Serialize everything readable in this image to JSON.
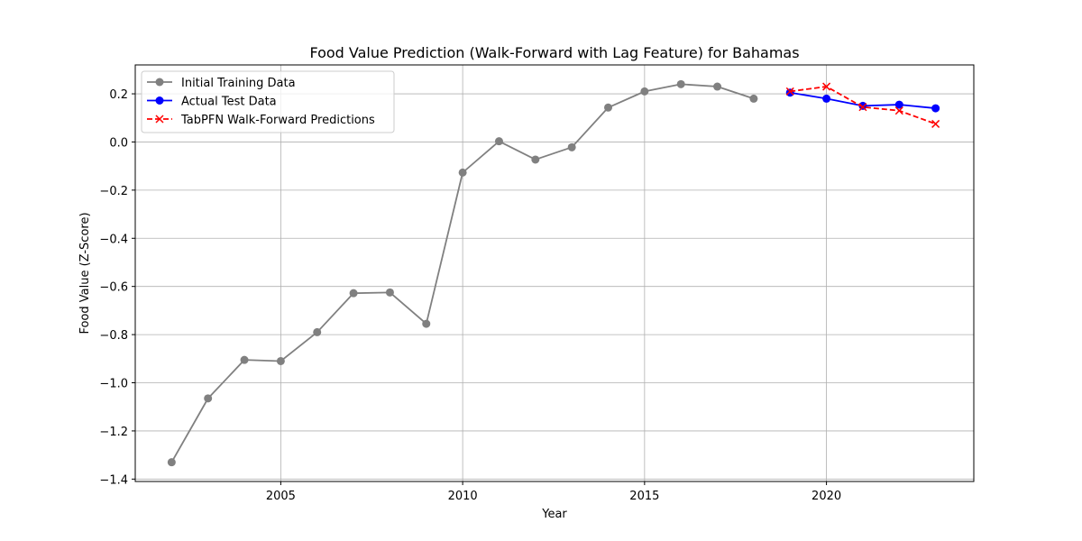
{
  "chart_data": {
    "type": "line",
    "title": "Food Value Prediction (Walk-Forward with Lag Feature) for Bahamas",
    "xlabel": "Year",
    "ylabel": "Food Value (Z-Score)",
    "xlim": [
      2001.0,
      2024.05
    ],
    "ylim": [
      -1.41,
      0.32
    ],
    "xticks": [
      2005,
      2010,
      2015,
      2020
    ],
    "yticks": [
      -1.4,
      -1.2,
      -1.0,
      -0.8,
      -0.6,
      -0.4,
      -0.2,
      0.0,
      0.2
    ],
    "grid": true,
    "legend_position": "top-left",
    "series": [
      {
        "name": "Initial Training Data",
        "color": "#808080",
        "linestyle": "solid",
        "marker": "circle",
        "x": [
          2002,
          2003,
          2004,
          2005,
          2006,
          2007,
          2008,
          2009,
          2010,
          2011,
          2012,
          2013,
          2014,
          2015,
          2016,
          2017,
          2018
        ],
        "y": [
          -1.33,
          -1.065,
          -0.905,
          -0.91,
          -0.79,
          -0.628,
          -0.625,
          -0.755,
          -0.127,
          0.003,
          -0.073,
          -0.022,
          0.143,
          0.21,
          0.24,
          0.23,
          0.18
        ]
      },
      {
        "name": "Actual Test Data",
        "color": "#0000ff",
        "linestyle": "solid",
        "marker": "circle",
        "x": [
          2019,
          2020,
          2021,
          2022,
          2023
        ],
        "y": [
          0.205,
          0.18,
          0.15,
          0.155,
          0.14
        ]
      },
      {
        "name": "TabPFN Walk-Forward Predictions",
        "color": "#ff0000",
        "linestyle": "dashed",
        "marker": "x",
        "x": [
          2019,
          2020,
          2021,
          2022,
          2023
        ],
        "y": [
          0.21,
          0.23,
          0.145,
          0.13,
          0.075
        ]
      }
    ]
  }
}
